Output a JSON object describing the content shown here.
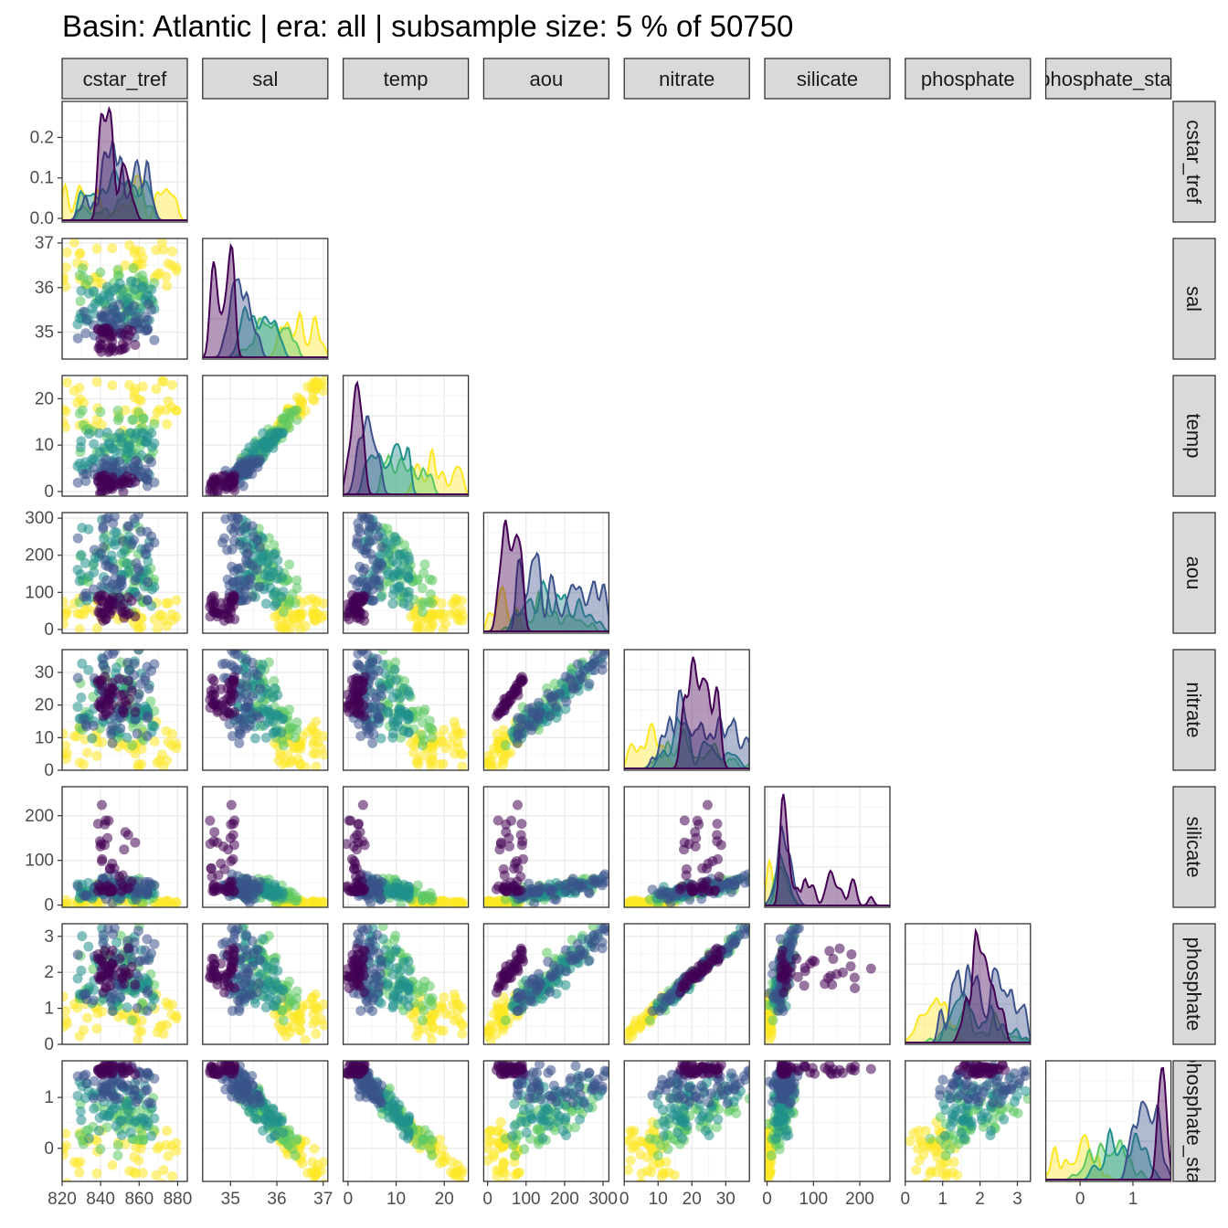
{
  "title": "Basin: Atlantic | era: all | subsample size: 5 % of 50750",
  "chart_data": {
    "type": "scatter",
    "layout": "pairs-lower-triangle",
    "title": "Basin: Atlantic | era: all | subsample size: 5 % of 50750",
    "variables": [
      {
        "name": "cstar_tref",
        "range": [
          820,
          885
        ],
        "ticks": [
          820,
          840,
          860,
          880
        ],
        "tick_labels": [
          "820",
          "840",
          "860",
          "880"
        ],
        "density_ylim": [
          0,
          0.28
        ],
        "density_ticks": [
          0.0,
          0.1,
          0.2
        ],
        "density_tick_labels": [
          "0.0",
          "0.1",
          "0.2"
        ]
      },
      {
        "name": "sal",
        "range": [
          34.4,
          37.1
        ],
        "ticks": [
          35,
          36,
          37
        ],
        "tick_labels": [
          "35",
          "36",
          "37"
        ]
      },
      {
        "name": "temp",
        "range": [
          -1,
          25
        ],
        "ticks": [
          0,
          10,
          20
        ],
        "tick_labels": [
          "0",
          "10",
          "20"
        ]
      },
      {
        "name": "aou",
        "range": [
          -10,
          315
        ],
        "ticks": [
          0,
          100,
          200,
          300
        ],
        "tick_labels": [
          "0",
          "100",
          "200",
          "300"
        ]
      },
      {
        "name": "nitrate",
        "range": [
          0,
          37
        ],
        "ticks": [
          0,
          10,
          20,
          30
        ],
        "tick_labels": [
          "0",
          "10",
          "20",
          "30"
        ]
      },
      {
        "name": "silicate",
        "range": [
          -5,
          265
        ],
        "ticks": [
          0,
          100,
          200
        ],
        "tick_labels": [
          "0",
          "100",
          "200"
        ]
      },
      {
        "name": "phosphate",
        "range": [
          0,
          3.35
        ],
        "ticks": [
          0,
          1,
          2,
          3
        ],
        "tick_labels": [
          "0",
          "1",
          "2",
          "3"
        ]
      },
      {
        "name": "phosphate_star",
        "range": [
          -0.65,
          1.72
        ],
        "ticks": [
          0,
          1
        ],
        "tick_labels": [
          "0",
          "1"
        ]
      }
    ],
    "color_scale": "viridis",
    "palette": [
      "#440154",
      "#3b528b",
      "#21908c",
      "#5dc863",
      "#fde725"
    ],
    "grid": true,
    "legend": "none"
  }
}
